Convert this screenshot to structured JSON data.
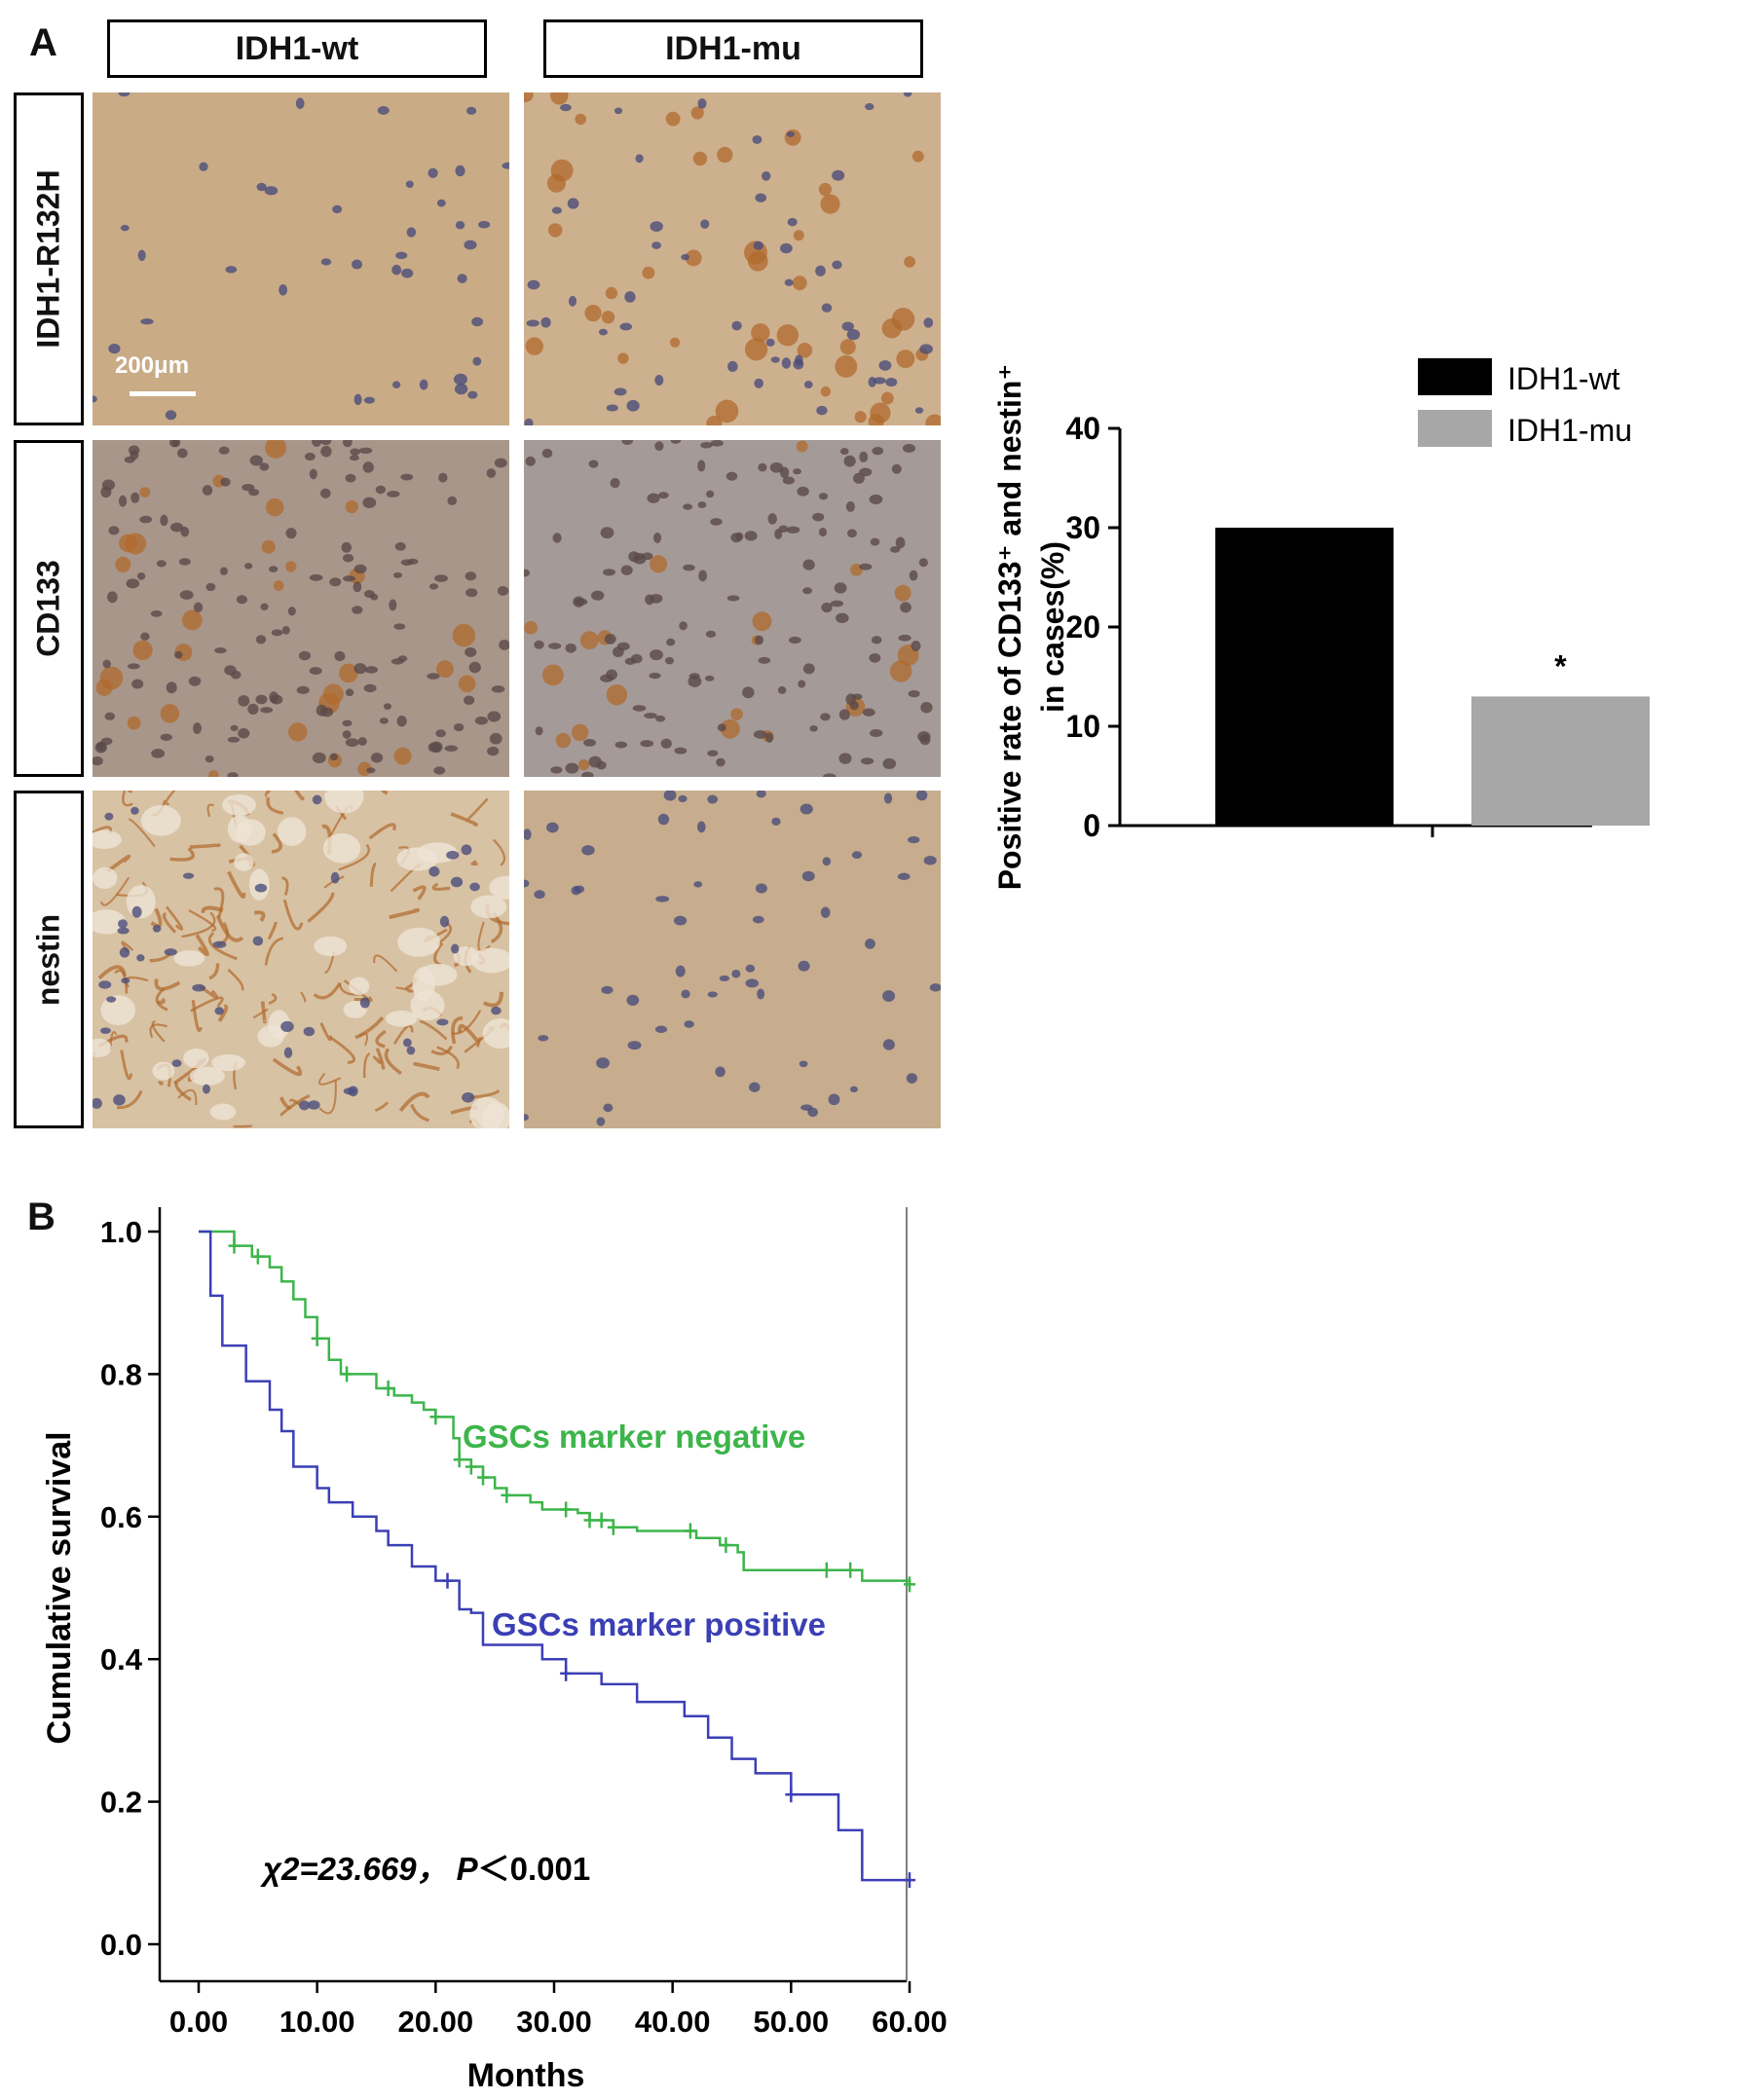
{
  "panels": {
    "a_label": "A",
    "b_label": "B"
  },
  "micrographs": {
    "columns": [
      "IDH1-wt",
      "IDH1-mu"
    ],
    "rows": [
      "IDH1-R132H",
      "CD133",
      "nestin"
    ],
    "scale_bar": "200μm",
    "stain_colors": {
      "background_light": "#cfb48f",
      "brown_stain": "#b06a2c",
      "nucleus": "#4b4d7a",
      "grey_tissue": "#a89a95"
    }
  },
  "chart_data": [
    {
      "type": "bar",
      "categories": [
        "IDH1-wt",
        "IDH1-mu"
      ],
      "values": [
        30,
        13
      ],
      "colors": [
        "#000000",
        "#a7a7a7"
      ],
      "legend": [
        "IDH1-wt",
        "IDH1-mu"
      ],
      "legend_position": "top-right",
      "ylabel_line1": "Positive rate  of CD133⁺ and nestin⁺",
      "ylabel_line2": "in cases(%)",
      "ylim": [
        0,
        40
      ],
      "yticks": [
        "0",
        "10",
        "20",
        "30",
        "40"
      ],
      "annotation": "*",
      "grid": false
    },
    {
      "type": "line",
      "subtype": "kaplan-meier",
      "xlabel": "Months",
      "ylabel": "Cumulative  survival",
      "xlim": [
        0,
        60
      ],
      "ylim": [
        0,
        1
      ],
      "xticks": [
        "0.00",
        "10.00",
        "20.00",
        "30.00",
        "40.00",
        "50.00",
        "60.00"
      ],
      "yticks": [
        "0.0",
        "0.2",
        "0.4",
        "0.6",
        "0.8",
        "1.0"
      ],
      "annotation": "χ2=23.669， P＜0.001",
      "annotation_parts": {
        "chi": "χ2=23.669，",
        "p_letter": "P",
        "p_rest": "＜0.001"
      },
      "grid": false,
      "series": [
        {
          "name": "GSCs marker negative",
          "color": "#3cb54a",
          "steps": [
            [
              0,
              1.0
            ],
            [
              3,
              0.98
            ],
            [
              4.5,
              0.965
            ],
            [
              6,
              0.95
            ],
            [
              7,
              0.93
            ],
            [
              8,
              0.905
            ],
            [
              9,
              0.88
            ],
            [
              10,
              0.85
            ],
            [
              11,
              0.82
            ],
            [
              12,
              0.8
            ],
            [
              14,
              0.8
            ],
            [
              15,
              0.78
            ],
            [
              16.5,
              0.77
            ],
            [
              18,
              0.76
            ],
            [
              19,
              0.75
            ],
            [
              20,
              0.74
            ],
            [
              21,
              0.74
            ],
            [
              21.5,
              0.71
            ],
            [
              22,
              0.68
            ],
            [
              23,
              0.67
            ],
            [
              24,
              0.655
            ],
            [
              25,
              0.64
            ],
            [
              26,
              0.63
            ],
            [
              28,
              0.62
            ],
            [
              29,
              0.61
            ],
            [
              32,
              0.605
            ],
            [
              33,
              0.595
            ],
            [
              35,
              0.585
            ],
            [
              37,
              0.58
            ],
            [
              42,
              0.57
            ],
            [
              44,
              0.56
            ],
            [
              45.5,
              0.55
            ],
            [
              46,
              0.525
            ],
            [
              50,
              0.525
            ],
            [
              56,
              0.51
            ],
            [
              60,
              0.505
            ]
          ],
          "censor_x": [
            3,
            5,
            10,
            12.5,
            16,
            20,
            22,
            23,
            24,
            26,
            31,
            33,
            34,
            35,
            41.5,
            44.5,
            53,
            55,
            60
          ]
        },
        {
          "name": "GSCs marker positive",
          "color": "#3b3fb5",
          "steps": [
            [
              0,
              1.0
            ],
            [
              1,
              0.91
            ],
            [
              2,
              0.84
            ],
            [
              4,
              0.79
            ],
            [
              6,
              0.75
            ],
            [
              7,
              0.72
            ],
            [
              8,
              0.67
            ],
            [
              10,
              0.64
            ],
            [
              11,
              0.62
            ],
            [
              13,
              0.6
            ],
            [
              15,
              0.58
            ],
            [
              16,
              0.56
            ],
            [
              18,
              0.53
            ],
            [
              20,
              0.51
            ],
            [
              22,
              0.47
            ],
            [
              23,
              0.465
            ],
            [
              24,
              0.42
            ],
            [
              29,
              0.4
            ],
            [
              31,
              0.38
            ],
            [
              34,
              0.365
            ],
            [
              37,
              0.34
            ],
            [
              41,
              0.32
            ],
            [
              43,
              0.29
            ],
            [
              45,
              0.26
            ],
            [
              47,
              0.24
            ],
            [
              50,
              0.21
            ],
            [
              54,
              0.16
            ],
            [
              56,
              0.09
            ],
            [
              60,
              0.09
            ]
          ],
          "censor_x": [
            21,
            31,
            50,
            60
          ]
        }
      ]
    }
  ]
}
